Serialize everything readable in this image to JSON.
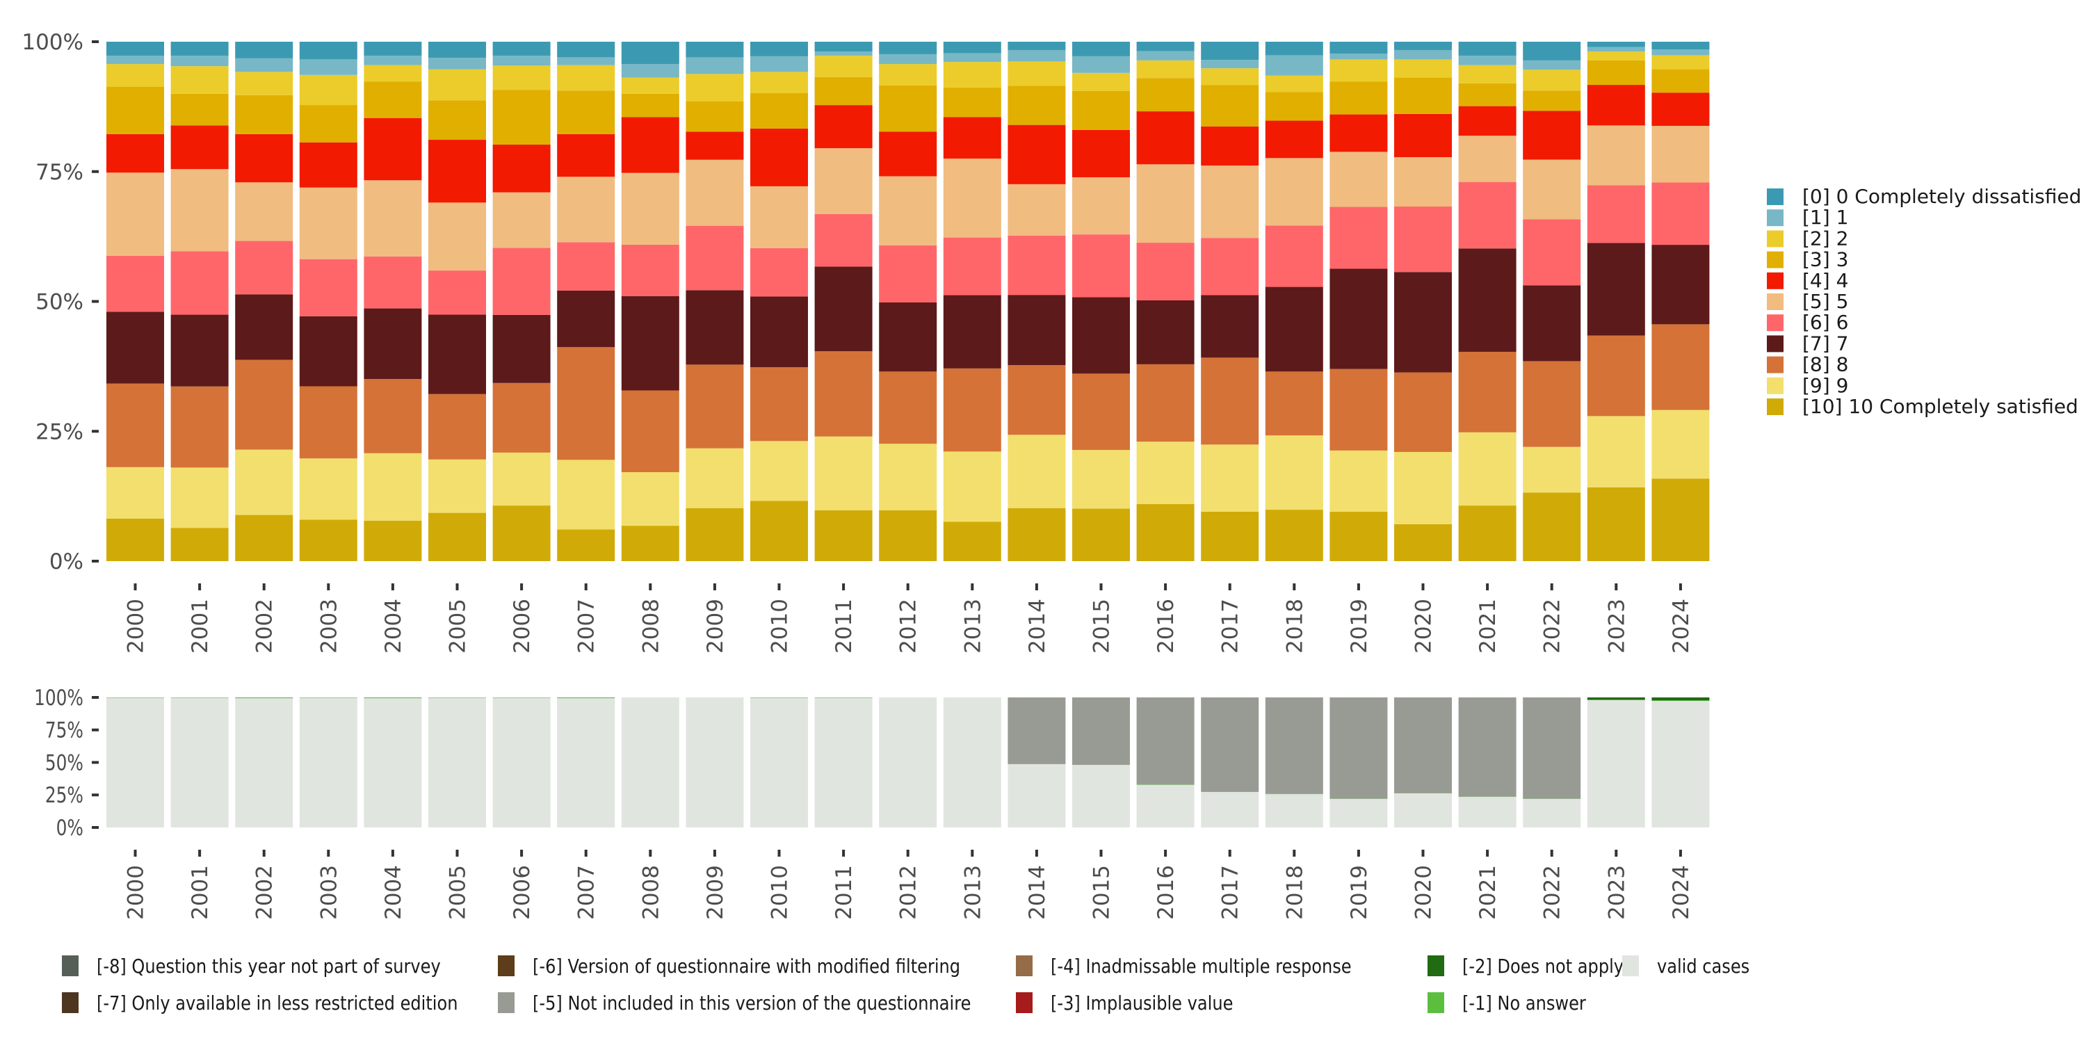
{
  "chart_data": [
    {
      "type": "bar",
      "stacked": true,
      "normalized": true,
      "title": "",
      "xlabel": "",
      "ylabel": "",
      "ylim": [
        0,
        100
      ],
      "yticks": [
        "0%",
        "25%",
        "50%",
        "75%",
        "100%"
      ],
      "grid": false,
      "legend_position": "right",
      "categories": [
        "2000",
        "2001",
        "2002",
        "2003",
        "2004",
        "2005",
        "2006",
        "2007",
        "2008",
        "2009",
        "2010",
        "2011",
        "2012",
        "2013",
        "2014",
        "2015",
        "2016",
        "2017",
        "2018",
        "2019",
        "2020",
        "2021",
        "2022",
        "2023",
        "2024"
      ],
      "series": [
        {
          "name": "[10] 10 Completely satisfied",
          "color": "#D0AB07",
          "values": [
            8.2,
            6.4,
            8.9,
            8.0,
            7.8,
            9.3,
            10.7,
            6.1,
            6.8,
            10.2,
            11.6,
            9.8,
            9.8,
            7.6,
            10.2,
            10.1,
            11.0,
            9.5,
            9.9,
            9.5,
            7.1,
            10.7,
            13.2,
            14.2,
            15.9
          ]
        },
        {
          "name": "[9] 9",
          "color": "#F2DF6D",
          "values": [
            9.9,
            11.6,
            12.6,
            11.8,
            13.0,
            10.3,
            10.2,
            13.4,
            10.3,
            11.5,
            11.5,
            14.2,
            12.8,
            13.5,
            14.1,
            11.3,
            12.0,
            12.9,
            14.3,
            11.8,
            13.9,
            14.1,
            8.8,
            13.7,
            13.2
          ]
        },
        {
          "name": "[8] 8",
          "color": "#D57237",
          "values": [
            16.1,
            15.6,
            17.3,
            13.9,
            14.3,
            12.6,
            13.4,
            21.7,
            15.7,
            16.1,
            14.2,
            16.4,
            13.9,
            16.0,
            13.4,
            14.7,
            14.9,
            16.7,
            12.3,
            15.7,
            15.3,
            15.5,
            16.5,
            15.5,
            16.5
          ]
        },
        {
          "name": "[7] 7",
          "color": "#5C1A1A",
          "values": [
            13.8,
            13.8,
            12.6,
            13.5,
            13.6,
            15.3,
            13.1,
            10.9,
            18.1,
            14.3,
            13.6,
            16.3,
            13.3,
            14.1,
            13.5,
            14.7,
            12.3,
            12.0,
            16.3,
            19.3,
            19.3,
            19.9,
            14.6,
            17.8,
            15.3
          ]
        },
        {
          "name": "[6] 6",
          "color": "#FF666A",
          "values": [
            10.8,
            12.2,
            10.3,
            11.0,
            10.0,
            8.5,
            12.9,
            9.3,
            9.9,
            12.4,
            9.3,
            10.1,
            11.0,
            11.1,
            11.4,
            12.1,
            11.1,
            11.0,
            11.8,
            11.9,
            12.6,
            12.8,
            12.7,
            11.1,
            12.0
          ]
        },
        {
          "name": "[5] 5",
          "color": "#F0BC80",
          "values": [
            16.0,
            15.8,
            11.3,
            13.8,
            14.7,
            13.1,
            10.7,
            12.6,
            13.8,
            12.7,
            11.9,
            12.7,
            13.3,
            15.2,
            9.9,
            11.0,
            15.1,
            13.9,
            13.0,
            10.6,
            9.5,
            8.9,
            11.5,
            11.5,
            10.9
          ]
        },
        {
          "name": "[4] 4",
          "color": "#F21A00",
          "values": [
            7.4,
            8.4,
            9.3,
            8.7,
            12.0,
            12.1,
            9.2,
            8.2,
            10.7,
            5.4,
            11.1,
            8.3,
            8.6,
            8.0,
            11.4,
            9.1,
            10.2,
            7.5,
            7.2,
            7.2,
            8.3,
            5.7,
            9.4,
            7.8,
            6.4
          ]
        },
        {
          "name": "[3] 3",
          "color": "#E1AF00",
          "values": [
            9.1,
            6.1,
            7.5,
            7.2,
            7.0,
            7.6,
            10.5,
            8.4,
            4.5,
            5.8,
            6.8,
            5.4,
            8.9,
            5.7,
            7.5,
            7.5,
            6.4,
            8.0,
            5.5,
            6.3,
            7.0,
            4.4,
            3.9,
            4.7,
            4.5
          ]
        },
        {
          "name": "[2] 2",
          "color": "#EBCC2A",
          "values": [
            4.4,
            5.3,
            4.5,
            5.8,
            3.2,
            6.0,
            4.7,
            4.9,
            3.1,
            5.3,
            4.1,
            4.1,
            4.1,
            4.9,
            4.7,
            3.5,
            3.4,
            3.2,
            3.2,
            4.3,
            3.5,
            3.5,
            4.0,
            1.7,
            2.7
          ]
        },
        {
          "name": "[1] 1",
          "color": "#78B7C5",
          "values": [
            1.6,
            2.0,
            2.6,
            3.0,
            1.8,
            2.2,
            1.9,
            1.5,
            2.6,
            3.2,
            3.0,
            0.8,
            1.9,
            1.7,
            2.2,
            3.2,
            1.8,
            1.6,
            3.9,
            1.1,
            1.8,
            1.8,
            1.8,
            0.9,
            1.1
          ]
        },
        {
          "name": "[0] 0 Completely dissatisfied",
          "color": "#3B9AB2",
          "values": [
            2.7,
            2.7,
            3.2,
            3.4,
            2.7,
            3.1,
            2.7,
            3.0,
            4.3,
            3.0,
            2.8,
            1.9,
            2.4,
            2.2,
            1.6,
            2.8,
            1.8,
            3.5,
            2.6,
            2.3,
            1.6,
            2.7,
            3.6,
            1.0,
            1.5
          ]
        }
      ]
    },
    {
      "type": "bar",
      "stacked": true,
      "normalized": true,
      "title": "",
      "xlabel": "",
      "ylabel": "",
      "ylim": [
        0,
        100
      ],
      "yticks": [
        "0%",
        "25%",
        "50%",
        "75%",
        "100%"
      ],
      "grid": false,
      "legend_position": "bottom",
      "categories": [
        "2000",
        "2001",
        "2002",
        "2003",
        "2004",
        "2005",
        "2006",
        "2007",
        "2008",
        "2009",
        "2010",
        "2011",
        "2012",
        "2013",
        "2014",
        "2015",
        "2016",
        "2017",
        "2018",
        "2019",
        "2020",
        "2021",
        "2022",
        "2023",
        "2024"
      ],
      "series": [
        {
          "name": "valid cases",
          "color": "#E1E5E0",
          "values": [
            99.7,
            99.7,
            99.4,
            99.7,
            99.4,
            99.7,
            99.7,
            99.4,
            100,
            100,
            99.7,
            99.7,
            100,
            100,
            48.7,
            48.1,
            32.7,
            27.3,
            25.6,
            21.9,
            26.2,
            23.5,
            21.9,
            97.9,
            97.3
          ]
        },
        {
          "name": "[-1] No answer",
          "color": "#5BBE3F",
          "values": [
            0.3,
            0.3,
            0.6,
            0.3,
            0.6,
            0.3,
            0.3,
            0.6,
            0,
            0,
            0.3,
            0.3,
            0,
            0,
            0,
            0,
            0.3,
            0,
            0.2,
            0.2,
            0.2,
            0.2,
            0.2,
            0.3,
            0.4
          ]
        },
        {
          "name": "[-2] Does not apply",
          "color": "#216B12",
          "values": [
            0,
            0,
            0,
            0,
            0,
            0,
            0,
            0,
            0,
            0,
            0,
            0,
            0,
            0,
            0,
            0,
            0,
            0,
            0,
            0,
            0,
            0,
            0,
            1.8,
            2.3
          ]
        },
        {
          "name": "[-3] Implausible value",
          "color": "#A61B1B",
          "values": [
            0,
            0,
            0,
            0,
            0,
            0,
            0,
            0,
            0,
            0,
            0,
            0,
            0,
            0,
            0,
            0,
            0,
            0,
            0,
            0,
            0,
            0,
            0,
            0,
            0
          ]
        },
        {
          "name": "[-4] Inadmissable multiple response",
          "color": "#966B47",
          "values": [
            0,
            0,
            0,
            0,
            0,
            0,
            0,
            0,
            0,
            0,
            0,
            0,
            0,
            0,
            0,
            0,
            0,
            0,
            0,
            0,
            0,
            0,
            0,
            0,
            0
          ]
        },
        {
          "name": "[-5] Not included in this version of the questionnaire",
          "color": "#989B93",
          "values": [
            0,
            0,
            0,
            0,
            0,
            0,
            0,
            0,
            0,
            0,
            0,
            0,
            0,
            0,
            51.3,
            51.9,
            67.0,
            72.7,
            74.2,
            77.9,
            73.6,
            76.3,
            77.9,
            0,
            0
          ]
        },
        {
          "name": "[-6] Version of questionnaire with modified filtering",
          "color": "#5E3D1A",
          "values": [
            0,
            0,
            0,
            0,
            0,
            0,
            0,
            0,
            0,
            0,
            0,
            0,
            0,
            0,
            0,
            0,
            0,
            0,
            0,
            0,
            0,
            0,
            0,
            0,
            0
          ]
        },
        {
          "name": "[-7] Only available in less restricted edition",
          "color": "#4E3520",
          "values": [
            0,
            0,
            0,
            0,
            0,
            0,
            0,
            0,
            0,
            0,
            0,
            0,
            0,
            0,
            0,
            0,
            0,
            0,
            0,
            0,
            0,
            0,
            0,
            0,
            0
          ]
        },
        {
          "name": "[-8] Question this year not part of survey",
          "color": "#565E58",
          "values": [
            0,
            0,
            0,
            0,
            0,
            0,
            0,
            0,
            0,
            0,
            0,
            0,
            0,
            0,
            0,
            0,
            0,
            0,
            0,
            0,
            0,
            0,
            0,
            0,
            0
          ]
        }
      ],
      "legend_order": [
        "[-8] Question this year not part of survey",
        "[-7] Only available in less restricted edition",
        "[-6] Version of questionnaire with modified filtering",
        "[-5] Not included in this version of the questionnaire",
        "[-4] Inadmissable multiple response",
        "[-3] Implausible value",
        "[-2] Does not apply",
        "[-1] No answer",
        "valid cases"
      ]
    }
  ]
}
